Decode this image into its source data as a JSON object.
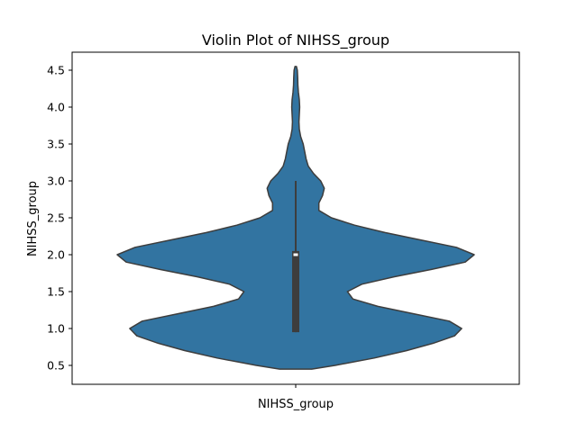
{
  "chart_data": {
    "type": "violin",
    "title": "Violin Plot of NIHSS_group",
    "xlabel": "NIHSS_group",
    "ylabel": "NIHSS_group",
    "categories": [
      "NIHSS_group"
    ],
    "ylim": [
      0.25,
      4.6
    ],
    "yticks": [
      0.5,
      1.0,
      1.5,
      2.0,
      2.5,
      3.0,
      3.5,
      4.0,
      4.5
    ],
    "ytick_labels": [
      "0.5",
      "1.0",
      "1.5",
      "2.0",
      "2.5",
      "3.0",
      "3.5",
      "4.0",
      "4.5"
    ],
    "fill_color": "#3274a1",
    "edge_color": "#3d3d3d",
    "density": {
      "y": [
        0.45,
        0.5,
        0.6,
        0.7,
        0.8,
        0.9,
        1.0,
        1.1,
        1.2,
        1.3,
        1.4,
        1.5,
        1.6,
        1.7,
        1.8,
        1.9,
        2.0,
        2.1,
        2.2,
        2.3,
        2.4,
        2.5,
        2.6,
        2.7,
        2.8,
        2.9,
        3.0,
        3.1,
        3.2,
        3.3,
        3.4,
        3.5,
        3.6,
        3.7,
        3.8,
        3.9,
        4.0,
        4.1,
        4.2,
        4.3,
        4.4,
        4.5,
        4.55
      ],
      "width": [
        0.09,
        0.22,
        0.44,
        0.62,
        0.77,
        0.89,
        0.93,
        0.86,
        0.66,
        0.46,
        0.32,
        0.29,
        0.37,
        0.55,
        0.76,
        0.95,
        1.0,
        0.9,
        0.7,
        0.5,
        0.33,
        0.2,
        0.13,
        0.13,
        0.15,
        0.16,
        0.14,
        0.1,
        0.07,
        0.058,
        0.05,
        0.042,
        0.028,
        0.02,
        0.018,
        0.02,
        0.022,
        0.02,
        0.015,
        0.012,
        0.011,
        0.009,
        0.004
      ]
    },
    "box": {
      "whisker_low": 0.95,
      "q1": 0.95,
      "median": 2.0,
      "q3": 2.05,
      "whisker_high": 3.0
    }
  }
}
